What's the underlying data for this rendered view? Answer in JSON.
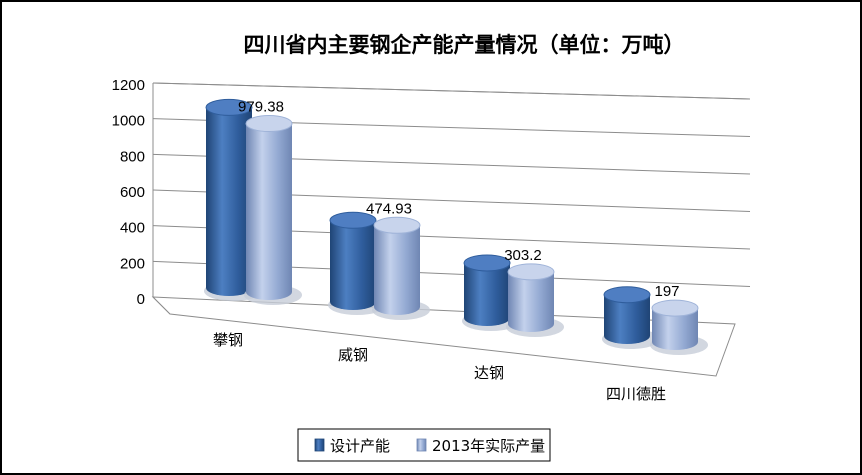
{
  "chart_data": {
    "type": "bar",
    "title": "四川省内主要钢企产能产量情况（单位：万吨）",
    "categories": [
      "攀钢",
      "威钢",
      "达钢",
      "四川德胜"
    ],
    "series": [
      {
        "name": "设计产能",
        "values": [
          1050,
          475,
          320,
          240
        ],
        "color": "#3a68ab"
      },
      {
        "name": "2013年实际产量",
        "values": [
          979.38,
          474.93,
          303.2,
          197
        ],
        "color": "#9fb3d8"
      }
    ],
    "data_labels": [
      "979.38",
      "474.93",
      "303.2",
      "197"
    ],
    "yticks": [
      "0",
      "200",
      "400",
      "600",
      "800",
      "1000",
      "1200"
    ],
    "ylim": [
      0,
      1200
    ],
    "grid": true,
    "legend": "bottom",
    "style": "3d-cylinder"
  }
}
